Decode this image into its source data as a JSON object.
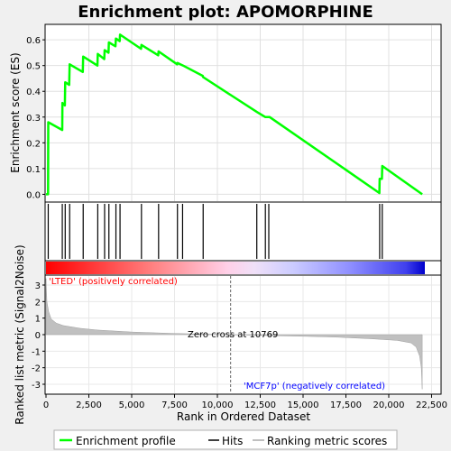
{
  "chart_data": {
    "type": "line",
    "title": "Enrichment plot: APOMORPHINE",
    "top_panel": {
      "ylabel": "Enrichment score (ES)",
      "yticks": [
        "0.0",
        "0.1",
        "0.2",
        "0.3",
        "0.4",
        "0.5",
        "0.6"
      ],
      "ylim": [
        -0.03,
        0.66
      ],
      "grid": true,
      "series_name": "Enrichment profile",
      "color": "#00ff00",
      "points": [
        [
          0,
          0.0
        ],
        [
          120,
          0.0
        ],
        [
          130,
          0.28
        ],
        [
          950,
          0.25
        ],
        [
          960,
          0.355
        ],
        [
          1100,
          0.345
        ],
        [
          1120,
          0.435
        ],
        [
          1350,
          0.425
        ],
        [
          1380,
          0.505
        ],
        [
          2150,
          0.475
        ],
        [
          2170,
          0.535
        ],
        [
          3000,
          0.5
        ],
        [
          3020,
          0.545
        ],
        [
          3400,
          0.525
        ],
        [
          3420,
          0.56
        ],
        [
          3650,
          0.55
        ],
        [
          3670,
          0.59
        ],
        [
          4050,
          0.575
        ],
        [
          4080,
          0.605
        ],
        [
          4300,
          0.595
        ],
        [
          4320,
          0.62
        ],
        [
          5550,
          0.565
        ],
        [
          5570,
          0.58
        ],
        [
          6550,
          0.54
        ],
        [
          6570,
          0.555
        ],
        [
          7650,
          0.505
        ],
        [
          7670,
          0.51
        ],
        [
          8000,
          0.5
        ],
        [
          9150,
          0.46
        ],
        [
          9170,
          0.455
        ],
        [
          12300,
          0.32
        ],
        [
          12800,
          0.3
        ],
        [
          13050,
          0.3
        ],
        [
          19450,
          0.005
        ],
        [
          19470,
          0.06
        ],
        [
          19600,
          0.06
        ],
        [
          19620,
          0.11
        ],
        [
          21950,
          0.0
        ]
      ]
    },
    "hits": {
      "series_name": "Hits",
      "positions": [
        130,
        950,
        1120,
        1380,
        2170,
        3020,
        3420,
        3670,
        4080,
        4320,
        5570,
        6570,
        7670,
        7970,
        9170,
        12300,
        12800,
        13000,
        19470,
        19620
      ]
    },
    "bottom_panel": {
      "ylabel": "Ranked list metric (Signal2Noise)",
      "xlabel": "Rank in Ordered Dataset",
      "series_name": "Ranking metric scores",
      "yticks": [
        "3",
        "2",
        "1",
        "0",
        "-1",
        "-2",
        "-3"
      ],
      "ylim": [
        -3.6,
        3.6
      ],
      "xticks": [
        "0",
        "2,500",
        "5,000",
        "7,500",
        "10,000",
        "12,500",
        "15,000",
        "17,500",
        "20,000",
        "22,500"
      ],
      "xlim": [
        0,
        23000
      ],
      "curve": [
        [
          0,
          3.4
        ],
        [
          50,
          2.0
        ],
        [
          150,
          1.4
        ],
        [
          300,
          0.95
        ],
        [
          600,
          0.7
        ],
        [
          1000,
          0.55
        ],
        [
          2000,
          0.38
        ],
        [
          3000,
          0.28
        ],
        [
          5000,
          0.16
        ],
        [
          7500,
          0.07
        ],
        [
          10769,
          0.0
        ],
        [
          13000,
          -0.06
        ],
        [
          15000,
          -0.1
        ],
        [
          17000,
          -0.15
        ],
        [
          19000,
          -0.25
        ],
        [
          20500,
          -0.35
        ],
        [
          21300,
          -0.5
        ],
        [
          21600,
          -0.75
        ],
        [
          21800,
          -1.3
        ],
        [
          21900,
          -2.0
        ],
        [
          21950,
          -3.3
        ]
      ],
      "zero_cross_rank": 10769,
      "zero_cross_label": "Zero cross at 10769",
      "positive_label": "'LTED' (positively correlated)",
      "negative_label": "'MCF7p' (negatively correlated)",
      "positive_color": "#ff0000",
      "negative_color": "#0000ff"
    },
    "legend": {
      "placement": "bottom",
      "entries": [
        "Enrichment profile",
        "Hits",
        "Ranking metric scores"
      ]
    }
  }
}
